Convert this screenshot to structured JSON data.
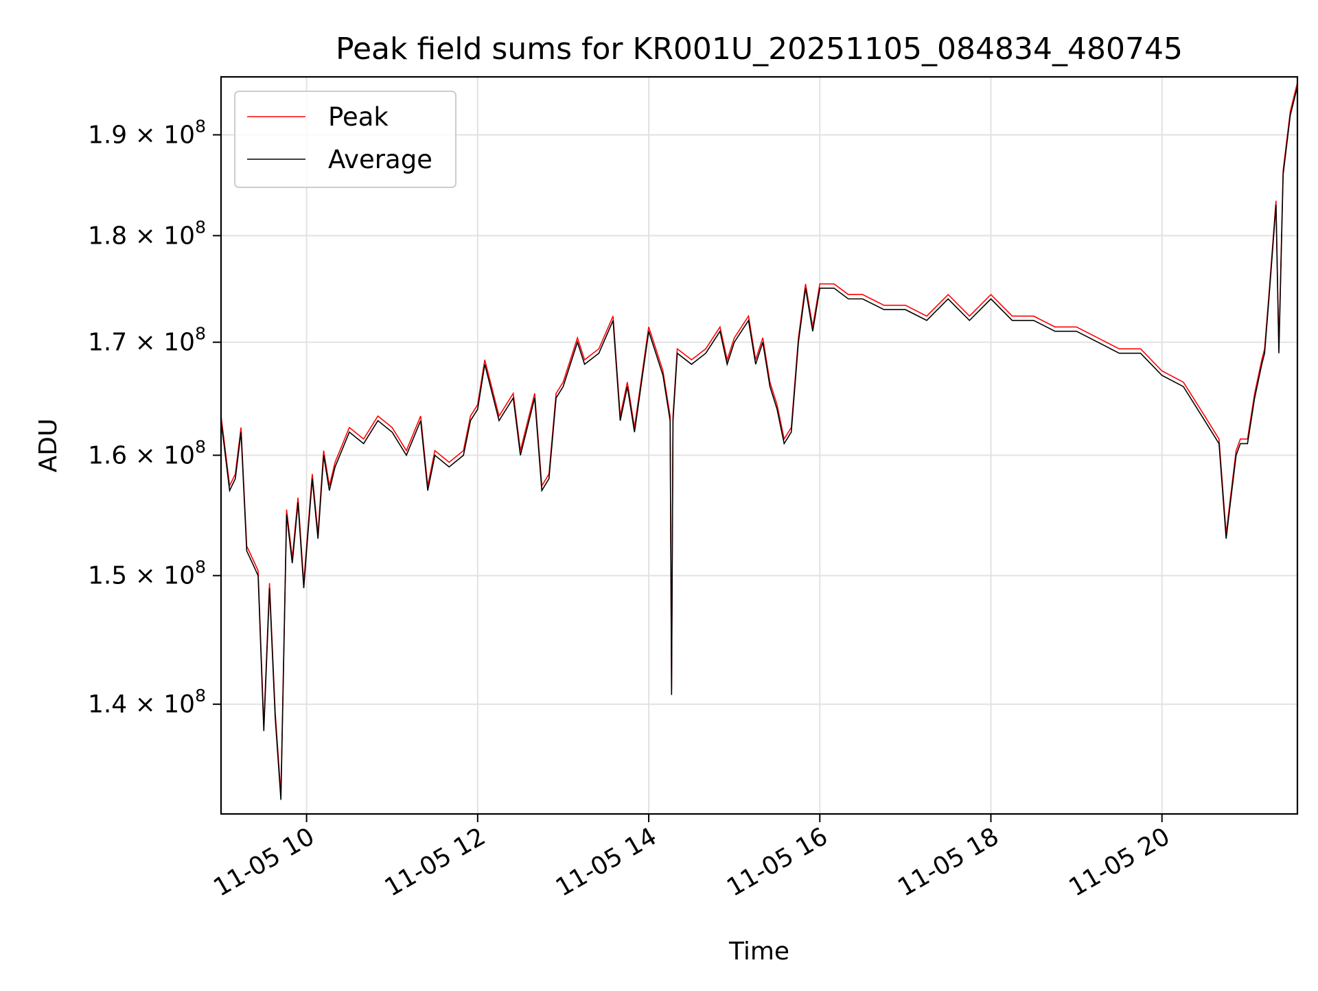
{
  "chart_data": {
    "type": "line",
    "title": "Peak field sums for KR001U_20251105_084834_480745",
    "xlabel": "Time",
    "ylabel": "ADU",
    "y_scale": "log",
    "grid": true,
    "legend_position": "upper-left",
    "xlim": [
      "2025-11-05 09:00",
      "2025-11-05 21:35"
    ],
    "ylim": [
      132000000,
      196000000
    ],
    "x_ticks": [
      {
        "at": "2025-11-05 10:00",
        "label": "11-05 10"
      },
      {
        "at": "2025-11-05 12:00",
        "label": "11-05 12"
      },
      {
        "at": "2025-11-05 14:00",
        "label": "11-05 14"
      },
      {
        "at": "2025-11-05 16:00",
        "label": "11-05 16"
      },
      {
        "at": "2025-11-05 18:00",
        "label": "11-05 18"
      },
      {
        "at": "2025-11-05 20:00",
        "label": "11-05 20"
      }
    ],
    "y_ticks": [
      {
        "value": 140000000,
        "mantissa": "1.4",
        "base": "10",
        "exponent": "8"
      },
      {
        "value": 150000000,
        "mantissa": "1.5",
        "base": "10",
        "exponent": "8"
      },
      {
        "value": 160000000,
        "mantissa": "1.6",
        "base": "10",
        "exponent": "8"
      },
      {
        "value": 170000000,
        "mantissa": "1.7",
        "base": "10",
        "exponent": "8"
      },
      {
        "value": 180000000,
        "mantissa": "1.8",
        "base": "10",
        "exponent": "8"
      },
      {
        "value": 190000000,
        "mantissa": "1.9",
        "base": "10",
        "exponent": "8"
      }
    ],
    "series": [
      {
        "name": "Peak",
        "color": "#ff0000",
        "y_offset": 400000
      },
      {
        "name": "Average",
        "color": "#000000",
        "x": [
          "2025-11-05 09:00",
          "2025-11-05 09:02",
          "2025-11-05 09:06",
          "2025-11-05 09:10",
          "2025-11-05 09:14",
          "2025-11-05 09:18",
          "2025-11-05 09:22",
          "2025-11-05 09:26",
          "2025-11-05 09:30",
          "2025-11-05 09:34",
          "2025-11-05 09:38",
          "2025-11-05 09:42",
          "2025-11-05 09:46",
          "2025-11-05 09:50",
          "2025-11-05 09:54",
          "2025-11-05 09:58",
          "2025-11-05 10:00",
          "2025-11-05 10:04",
          "2025-11-05 10:08",
          "2025-11-05 10:12",
          "2025-11-05 10:16",
          "2025-11-05 10:20",
          "2025-11-05 10:30",
          "2025-11-05 10:40",
          "2025-11-05 10:50",
          "2025-11-05 11:00",
          "2025-11-05 11:10",
          "2025-11-05 11:20",
          "2025-11-05 11:25",
          "2025-11-05 11:30",
          "2025-11-05 11:40",
          "2025-11-05 11:50",
          "2025-11-05 11:55",
          "2025-11-05 12:00",
          "2025-11-05 12:05",
          "2025-11-05 12:15",
          "2025-11-05 12:25",
          "2025-11-05 12:30",
          "2025-11-05 12:40",
          "2025-11-05 12:45",
          "2025-11-05 12:50",
          "2025-11-05 12:55",
          "2025-11-05 13:00",
          "2025-11-05 13:10",
          "2025-11-05 13:15",
          "2025-11-05 13:25",
          "2025-11-05 13:35",
          "2025-11-05 13:40",
          "2025-11-05 13:45",
          "2025-11-05 13:50",
          "2025-11-05 14:00",
          "2025-11-05 14:05",
          "2025-11-05 14:10",
          "2025-11-05 14:15",
          "2025-11-05 14:16",
          "2025-11-05 14:17",
          "2025-11-05 14:20",
          "2025-11-05 14:30",
          "2025-11-05 14:40",
          "2025-11-05 14:50",
          "2025-11-05 14:55",
          "2025-11-05 15:00",
          "2025-11-05 15:10",
          "2025-11-05 15:15",
          "2025-11-05 15:20",
          "2025-11-05 15:25",
          "2025-11-05 15:30",
          "2025-11-05 15:35",
          "2025-11-05 15:40",
          "2025-11-05 15:45",
          "2025-11-05 15:50",
          "2025-11-05 15:55",
          "2025-11-05 16:00",
          "2025-11-05 16:10",
          "2025-11-05 16:20",
          "2025-11-05 16:30",
          "2025-11-05 16:45",
          "2025-11-05 17:00",
          "2025-11-05 17:15",
          "2025-11-05 17:30",
          "2025-11-05 17:45",
          "2025-11-05 18:00",
          "2025-11-05 18:15",
          "2025-11-05 18:30",
          "2025-11-05 18:45",
          "2025-11-05 19:00",
          "2025-11-05 19:15",
          "2025-11-05 19:30",
          "2025-11-05 19:45",
          "2025-11-05 20:00",
          "2025-11-05 20:15",
          "2025-11-05 20:30",
          "2025-11-05 20:40",
          "2025-11-05 20:45",
          "2025-11-05 20:48",
          "2025-11-05 20:52",
          "2025-11-05 20:55",
          "2025-11-05 21:00",
          "2025-11-05 21:05",
          "2025-11-05 21:10",
          "2025-11-05 21:12",
          "2025-11-05 21:15",
          "2025-11-05 21:20",
          "2025-11-05 21:22",
          "2025-11-05 21:25",
          "2025-11-05 21:30",
          "2025-11-05 21:35"
        ],
        "values": [
          163000000,
          161000000,
          157000000,
          158000000,
          162000000,
          152000000,
          151000000,
          150000000,
          138000000,
          149000000,
          139000000,
          133000000,
          155000000,
          151000000,
          156000000,
          149000000,
          152000000,
          158000000,
          153000000,
          160000000,
          157000000,
          159000000,
          162000000,
          161000000,
          163000000,
          162000000,
          160000000,
          163000000,
          157000000,
          160000000,
          159000000,
          160000000,
          163000000,
          164000000,
          168000000,
          163000000,
          165000000,
          160000000,
          165000000,
          157000000,
          158000000,
          165000000,
          166000000,
          170000000,
          168000000,
          169000000,
          172000000,
          163000000,
          166000000,
          162000000,
          171000000,
          169000000,
          167000000,
          163000000,
          140700000,
          163000000,
          169000000,
          168000000,
          169000000,
          171000000,
          168000000,
          170000000,
          172000000,
          168000000,
          170000000,
          166000000,
          164000000,
          161000000,
          162000000,
          170000000,
          175000000,
          171000000,
          175000000,
          175000000,
          174000000,
          174000000,
          173000000,
          173000000,
          172000000,
          174000000,
          172000000,
          174000000,
          172000000,
          172000000,
          171000000,
          171000000,
          170000000,
          169000000,
          169000000,
          167000000,
          166000000,
          163000000,
          161000000,
          153000000,
          156000000,
          160000000,
          161000000,
          161000000,
          165000000,
          168000000,
          169000000,
          174000000,
          183000000,
          169000000,
          186000000,
          192000000,
          195000000
        ]
      }
    ]
  }
}
